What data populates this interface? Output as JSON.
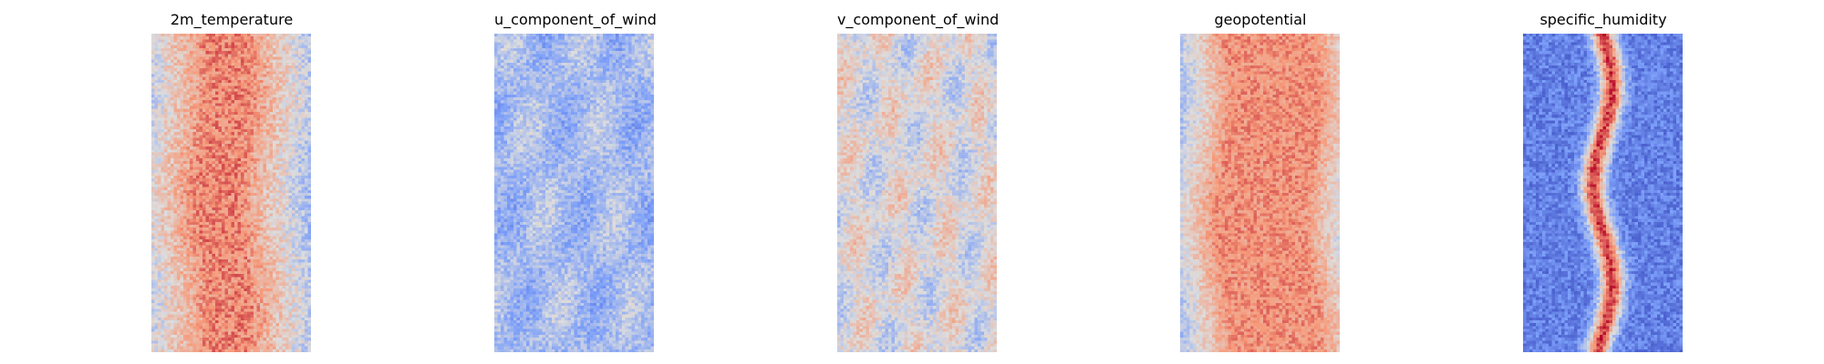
{
  "chart_data": [
    {
      "type": "heatmap",
      "title": "2m_temperature",
      "colormap": "coolwarm",
      "axes": "off",
      "grid_shape": [
        110,
        50
      ],
      "pattern": "warm central band (red/orange) with cooler blue-speckled edges"
    },
    {
      "type": "heatmap",
      "title": "u_component_of_wind",
      "colormap": "coolwarm",
      "axes": "off",
      "grid_shape": [
        110,
        50
      ],
      "pattern": "mostly light blue with scattered blue and orange patches"
    },
    {
      "type": "heatmap",
      "title": "v_component_of_wind",
      "colormap": "coolwarm",
      "axes": "off",
      "grid_shape": [
        110,
        50
      ],
      "pattern": "mostly neutral grey with scattered blue and red patches"
    },
    {
      "type": "heatmap",
      "title": "geopotential",
      "colormap": "coolwarm",
      "axes": "off",
      "grid_shape": [
        110,
        50
      ],
      "pattern": "broad warm band with blue edges on left and right"
    },
    {
      "type": "heatmap",
      "title": "specific_humidity",
      "colormap": "coolwarm",
      "axes": "off",
      "grid_shape": [
        110,
        50
      ],
      "pattern": "blue field with a narrow wavy red band down the center"
    }
  ]
}
